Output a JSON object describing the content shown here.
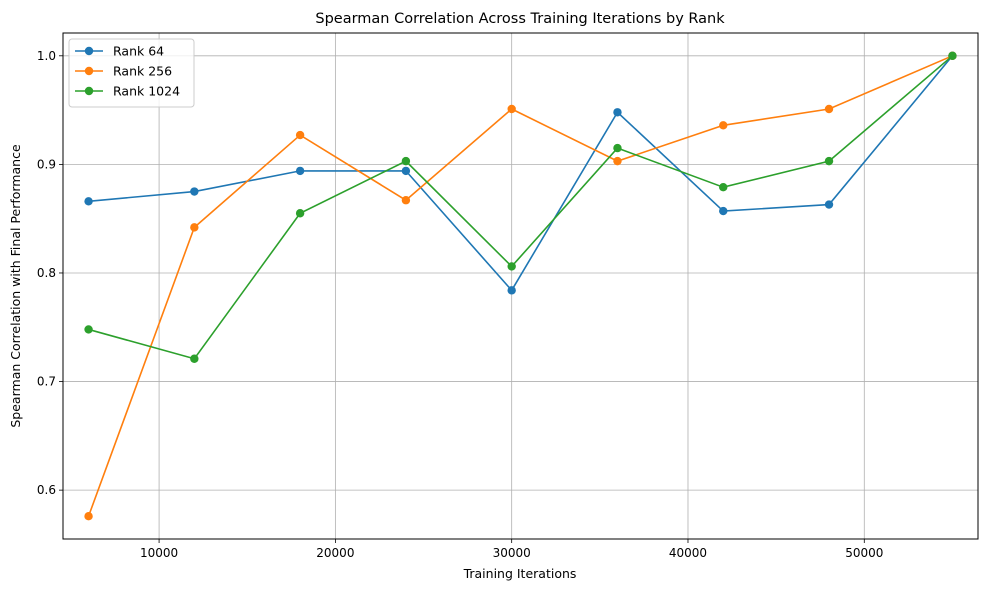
{
  "chart_data": {
    "type": "line",
    "title": "Spearman Correlation Across Training Iterations by Rank",
    "xlabel": "Training Iterations",
    "ylabel": "Spearman Correlation with Final Performance",
    "x": [
      6000,
      12000,
      18000,
      24000,
      30000,
      36000,
      42000,
      48000,
      55000
    ],
    "xlim": [
      4550,
      56450
    ],
    "ylim": [
      0.555,
      1.021
    ],
    "xticks": [
      10000,
      20000,
      30000,
      40000,
      50000
    ],
    "yticks": [
      0.6,
      0.7,
      0.8,
      0.9,
      1.0
    ],
    "xtick_labels": [
      "10000",
      "20000",
      "30000",
      "40000",
      "50000"
    ],
    "ytick_labels": [
      "0.6",
      "0.7",
      "0.8",
      "0.9",
      "1.0"
    ],
    "grid": true,
    "legend_position": "top-left",
    "series": [
      {
        "name": "Rank 64",
        "color": "#1f77b4",
        "values": [
          0.866,
          0.875,
          0.894,
          0.894,
          0.784,
          0.948,
          0.857,
          0.863,
          1.0
        ]
      },
      {
        "name": "Rank 256",
        "color": "#ff7f0e",
        "values": [
          0.576,
          0.842,
          0.927,
          0.867,
          0.951,
          0.903,
          0.936,
          0.951,
          1.0
        ]
      },
      {
        "name": "Rank 1024",
        "color": "#2ca02c",
        "values": [
          0.748,
          0.721,
          0.855,
          0.903,
          0.806,
          0.915,
          0.879,
          0.903,
          1.0
        ]
      }
    ]
  }
}
